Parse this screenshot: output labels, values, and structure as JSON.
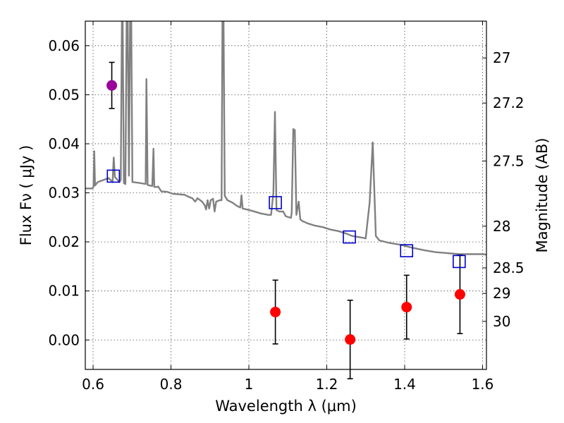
{
  "chart_data": {
    "type": "scatter",
    "xlabel": "Wavelength  λ (μm)",
    "ylabel": "Flux  Fν  ( μJy )",
    "ylabel_right": "Magnitude (AB)",
    "xlim": [
      0.58,
      1.61
    ],
    "ylim": [
      -0.006,
      0.065
    ],
    "grid": true,
    "x_ticks": [
      {
        "value": 0.6,
        "label": "0.6"
      },
      {
        "value": 0.8,
        "label": "0.8"
      },
      {
        "value": 1.0,
        "label": "1"
      },
      {
        "value": 1.2,
        "label": "1.2"
      },
      {
        "value": 1.4,
        "label": "1.4"
      },
      {
        "value": 1.6,
        "label": "1.6"
      }
    ],
    "y_ticks": [
      {
        "value": 0.0,
        "label": "0.00"
      },
      {
        "value": 0.01,
        "label": "0.01"
      },
      {
        "value": 0.02,
        "label": "0.02"
      },
      {
        "value": 0.03,
        "label": "0.03"
      },
      {
        "value": 0.04,
        "label": "0.04"
      },
      {
        "value": 0.05,
        "label": "0.05"
      },
      {
        "value": 0.06,
        "label": "0.06"
      }
    ],
    "magnitude_ticks": [
      {
        "value": 0.0575,
        "label": "27"
      },
      {
        "value": 0.0483,
        "label": "27.2"
      },
      {
        "value": 0.0365,
        "label": "27.5"
      },
      {
        "value": 0.0232,
        "label": "28"
      },
      {
        "value": 0.0147,
        "label": "28.5"
      },
      {
        "value": 0.0095,
        "label": "29"
      },
      {
        "value": 0.0038,
        "label": "30"
      }
    ],
    "series": [
      {
        "kind": "photometry-primary",
        "color": "#9b009b",
        "points": [
          {
            "x": 0.648,
            "y": 0.0519,
            "err": 0.0047
          }
        ]
      },
      {
        "kind": "photometry",
        "color": "#ff0000",
        "points": [
          {
            "x": 1.068,
            "y": 0.0057,
            "err": 0.0065
          },
          {
            "x": 1.26,
            "y": 0.0001,
            "err": 0.008
          },
          {
            "x": 1.405,
            "y": 0.0067,
            "err": 0.0065
          },
          {
            "x": 1.542,
            "y": 0.0093,
            "err": 0.008
          }
        ]
      },
      {
        "kind": "model-photometry",
        "color": "#0000cc",
        "points": [
          {
            "x": 0.652,
            "y": 0.0334
          },
          {
            "x": 1.068,
            "y": 0.028
          },
          {
            "x": 1.258,
            "y": 0.021
          },
          {
            "x": 1.405,
            "y": 0.0182
          },
          {
            "x": 1.54,
            "y": 0.016
          }
        ]
      },
      {
        "kind": "model-spectrum",
        "color": "#808080",
        "points": [
          [
            0.58,
            0.0309
          ],
          [
            0.598,
            0.0309
          ],
          [
            0.601,
            0.0312
          ],
          [
            0.603,
            0.0385
          ],
          [
            0.605,
            0.0315
          ],
          [
            0.612,
            0.0322
          ],
          [
            0.64,
            0.033
          ],
          [
            0.65,
            0.0322
          ],
          [
            0.653,
            0.0372
          ],
          [
            0.656,
            0.0332
          ],
          [
            0.668,
            0.0322
          ],
          [
            0.671,
            0.0326
          ],
          [
            0.674,
            0.065
          ],
          [
            0.676,
            0.065
          ],
          [
            0.679,
            0.032
          ],
          [
            0.683,
            0.0318
          ],
          [
            0.686,
            0.065
          ],
          [
            0.689,
            0.065
          ],
          [
            0.692,
            0.0335
          ],
          [
            0.695,
            0.065
          ],
          [
            0.698,
            0.065
          ],
          [
            0.701,
            0.0322
          ],
          [
            0.72,
            0.032
          ],
          [
            0.735,
            0.0318
          ],
          [
            0.737,
            0.0532
          ],
          [
            0.74,
            0.0316
          ],
          [
            0.752,
            0.0314
          ],
          [
            0.755,
            0.039
          ],
          [
            0.757,
            0.0312
          ],
          [
            0.765,
            0.0312
          ],
          [
            0.767,
            0.0313
          ],
          [
            0.775,
            0.0303
          ],
          [
            0.79,
            0.0302
          ],
          [
            0.805,
            0.0298
          ],
          [
            0.82,
            0.0297
          ],
          [
            0.835,
            0.0296
          ],
          [
            0.845,
            0.0292
          ],
          [
            0.855,
            0.0289
          ],
          [
            0.862,
            0.0282
          ],
          [
            0.868,
            0.0289
          ],
          [
            0.88,
            0.0282
          ],
          [
            0.887,
            0.0274
          ],
          [
            0.89,
            0.0266
          ],
          [
            0.894,
            0.0285
          ],
          [
            0.898,
            0.0268
          ],
          [
            0.902,
            0.0285
          ],
          [
            0.908,
            0.0288
          ],
          [
            0.912,
            0.0262
          ],
          [
            0.916,
            0.0282
          ],
          [
            0.925,
            0.0285
          ],
          [
            0.93,
            0.0285
          ],
          [
            0.932,
            0.065
          ],
          [
            0.935,
            0.065
          ],
          [
            0.938,
            0.0294
          ],
          [
            0.945,
            0.0285
          ],
          [
            0.958,
            0.028
          ],
          [
            0.968,
            0.0274
          ],
          [
            0.978,
            0.027
          ],
          [
            0.981,
            0.0295
          ],
          [
            0.984,
            0.0268
          ],
          [
            0.995,
            0.0266
          ],
          [
            1.01,
            0.0263
          ],
          [
            1.03,
            0.0258
          ],
          [
            1.05,
            0.0255
          ],
          [
            1.057,
            0.0255
          ],
          [
            1.063,
            0.03
          ],
          [
            1.067,
            0.0465
          ],
          [
            1.071,
            0.0265
          ],
          [
            1.078,
            0.0262
          ],
          [
            1.088,
            0.0262
          ],
          [
            1.095,
            0.0252
          ],
          [
            1.108,
            0.0249
          ],
          [
            1.11,
            0.026
          ],
          [
            1.114,
            0.043
          ],
          [
            1.118,
            0.0428
          ],
          [
            1.122,
            0.0255
          ],
          [
            1.128,
            0.0282
          ],
          [
            1.132,
            0.0246
          ],
          [
            1.138,
            0.0242
          ],
          [
            1.145,
            0.024
          ],
          [
            1.15,
            0.0238
          ],
          [
            1.17,
            0.0233
          ],
          [
            1.19,
            0.023
          ],
          [
            1.21,
            0.0225
          ],
          [
            1.23,
            0.0222
          ],
          [
            1.25,
            0.0217
          ],
          [
            1.265,
            0.0212
          ],
          [
            1.28,
            0.021
          ],
          [
            1.295,
            0.0208
          ],
          [
            1.3,
            0.0207
          ],
          [
            1.31,
            0.028
          ],
          [
            1.318,
            0.0403
          ],
          [
            1.326,
            0.0212
          ],
          [
            1.335,
            0.0203
          ],
          [
            1.36,
            0.0198
          ],
          [
            1.39,
            0.0194
          ],
          [
            1.42,
            0.0188
          ],
          [
            1.45,
            0.0183
          ],
          [
            1.48,
            0.0179
          ],
          [
            1.51,
            0.0177
          ],
          [
            1.54,
            0.0175
          ],
          [
            1.57,
            0.0175
          ],
          [
            1.6,
            0.0175
          ],
          [
            1.61,
            0.0174
          ]
        ]
      }
    ]
  }
}
